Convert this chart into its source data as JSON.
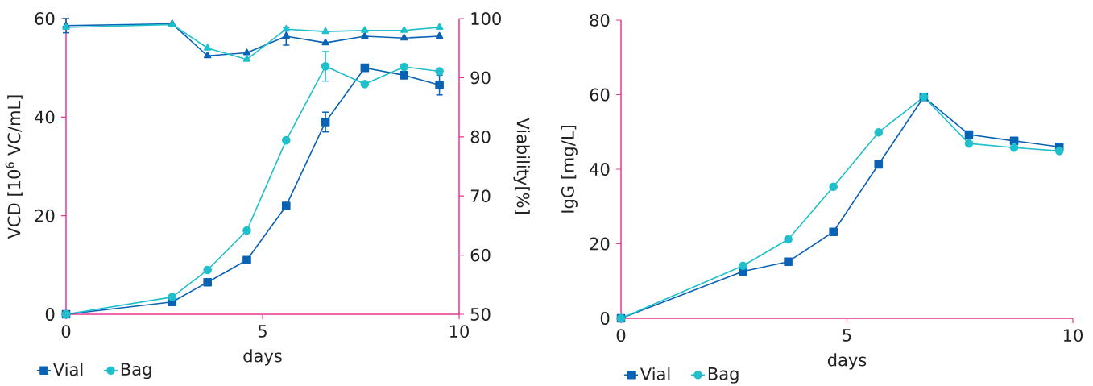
{
  "chart_data": [
    {
      "type": "line",
      "xlabel": "days",
      "ylabel": "VCD [10$^{6}$ VC/mL]",
      "y2label": "Viability[%]",
      "xlim": [
        0,
        10
      ],
      "xticks": [
        0,
        5,
        10
      ],
      "ylim": [
        0,
        60
      ],
      "yticks": [
        0,
        20,
        40,
        60
      ],
      "y2lim": [
        50,
        100
      ],
      "y2ticks": [
        50,
        60,
        70,
        80,
        90,
        100
      ],
      "grid": false,
      "legend": "bottom left",
      "line_style": "solid",
      "x": [
        0,
        2.7,
        3.6,
        4.6,
        5.6,
        6.6,
        7.6,
        8.6,
        9.5
      ],
      "series": [
        {
          "name": "Vial",
          "color": "#0a62b4",
          "marker": "square",
          "values": [
            0,
            2.5,
            6.5,
            11,
            22,
            39,
            50,
            48.5,
            46.5
          ],
          "errors": [
            null,
            null,
            null,
            null,
            null,
            2,
            null,
            null,
            2
          ]
        },
        {
          "name": "Bag",
          "color": "#1fbfcc",
          "marker": "circle",
          "values": [
            0,
            3.5,
            9,
            17,
            35.3,
            50.3,
            46.7,
            50.2,
            49.3
          ],
          "errors": [
            null,
            null,
            null,
            null,
            null,
            3,
            null,
            null,
            null
          ]
        },
        {
          "color": "#0a62b4",
          "marker": "triangle",
          "axis": "y2",
          "values": [
            98.8,
            99.1,
            93.7,
            94.2,
            97,
            95.9,
            97,
            96.7,
            97
          ],
          "errors": [
            1.2,
            null,
            null,
            null,
            1.5,
            null,
            null,
            null,
            null
          ]
        },
        {
          "color": "#1fbfcc",
          "marker": "triangle",
          "axis": "y2",
          "values": [
            98.5,
            99,
            95,
            93.1,
            98.2,
            97.8,
            98,
            98,
            98.5
          ]
        }
      ]
    },
    {
      "type": "line",
      "xlabel": "days",
      "ylabel": "IgG [mg/L]",
      "xlim": [
        0,
        10
      ],
      "xticks": [
        0,
        5,
        10
      ],
      "ylim": [
        0,
        80
      ],
      "yticks": [
        0,
        20,
        40,
        60,
        80
      ],
      "grid": false,
      "legend": "bottom left",
      "line_style": "solid",
      "x": [
        0,
        2.7,
        3.7,
        4.7,
        5.7,
        6.7,
        7.7,
        8.7,
        9.7
      ],
      "series": [
        {
          "name": "Vial",
          "color": "#0a62b4",
          "marker": "square",
          "values": [
            0,
            12.6,
            15.2,
            23.2,
            41.3,
            59.4,
            49.3,
            47.6,
            46
          ]
        },
        {
          "name": "Bag",
          "color": "#1fbfcc",
          "marker": "circle",
          "values": [
            0,
            14.1,
            21.2,
            35.3,
            49.9,
            59.4,
            46.9,
            45.8,
            44.9
          ]
        }
      ]
    }
  ]
}
